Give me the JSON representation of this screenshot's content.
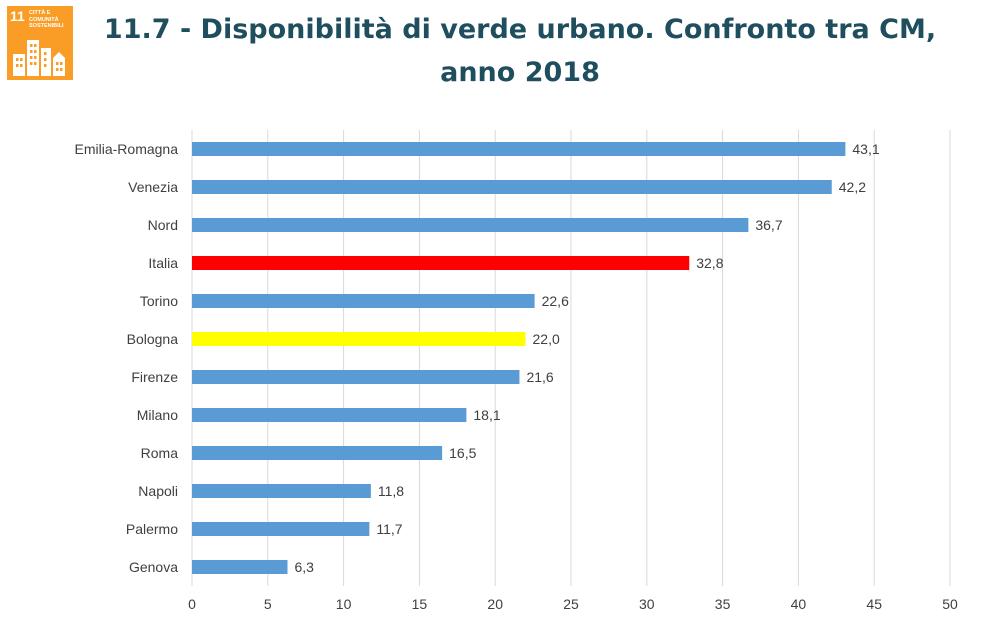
{
  "badge": {
    "number": "11",
    "caption": "CITTÀ E COMUNITÀ SOSTENIBILI",
    "color": "#F99D26",
    "icon": "city-buildings-icon"
  },
  "title": "11.7 - Disponibilità di verde urbano. Confronto tra CM, anno 2018",
  "chart_data": {
    "type": "bar",
    "orientation": "horizontal",
    "title": "11.7 - Disponibilità di verde urbano. Confronto tra CM, anno 2018",
    "categories": [
      "Emilia-Romagna",
      "Venezia",
      "Nord",
      "Italia",
      "Torino",
      "Bologna",
      "Firenze",
      "Milano",
      "Roma",
      "Napoli",
      "Palermo",
      "Genova"
    ],
    "values": [
      43.1,
      42.2,
      36.7,
      32.8,
      22.6,
      22.0,
      21.6,
      18.1,
      16.5,
      11.8,
      11.7,
      6.3
    ],
    "value_labels": [
      "43,1",
      "42,2",
      "36,7",
      "32,8",
      "22,6",
      "22,0",
      "21,6",
      "18,1",
      "16,5",
      "11,8",
      "11,7",
      "6,3"
    ],
    "colors": [
      "#5B9BD5",
      "#5B9BD5",
      "#5B9BD5",
      "#FF0000",
      "#5B9BD5",
      "#FFFF00",
      "#5B9BD5",
      "#5B9BD5",
      "#5B9BD5",
      "#5B9BD5",
      "#5B9BD5",
      "#5B9BD5"
    ],
    "xlim": [
      0,
      50
    ],
    "xticks": [
      0,
      5,
      10,
      15,
      20,
      25,
      30,
      35,
      40,
      45,
      50
    ],
    "grid": true,
    "legend": "none",
    "xlabel": "",
    "ylabel": ""
  }
}
